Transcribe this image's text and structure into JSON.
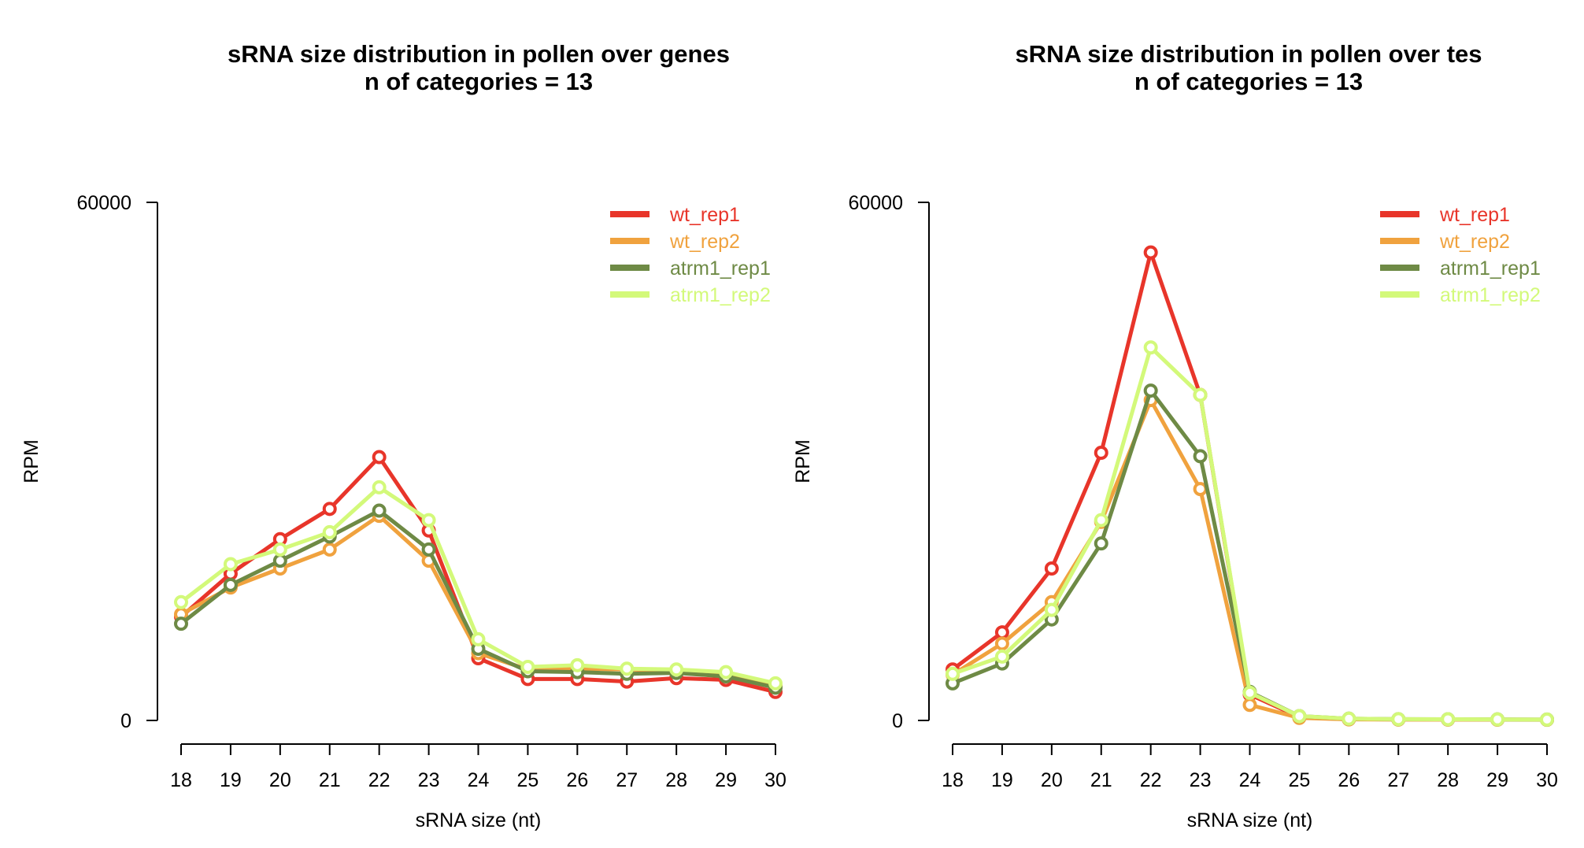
{
  "chart_data": [
    {
      "type": "line",
      "title": "sRNA size distribution in pollen over genes",
      "subtitle": "n of categories = 13",
      "xlabel": "sRNA size (nt)",
      "ylabel": "RPM",
      "x": [
        18,
        19,
        20,
        21,
        22,
        23,
        24,
        25,
        26,
        27,
        28,
        29,
        30
      ],
      "x_tick_labels": [
        "18",
        "19",
        "20",
        "21",
        "22",
        "23",
        "24",
        "25",
        "26",
        "27",
        "28",
        "29",
        "30"
      ],
      "ylim": [
        0,
        60000
      ],
      "y_tick_labels": [
        "0",
        "60000"
      ],
      "grid": false,
      "legend_position": "top-right",
      "series": [
        {
          "name": "wt_rep1",
          "color": "#e8352a",
          "values": [
            12000,
            17000,
            21000,
            24500,
            30500,
            22000,
            7200,
            4800,
            4800,
            4500,
            4900,
            4700,
            3300
          ]
        },
        {
          "name": "wt_rep2",
          "color": "#f0a23e",
          "values": [
            12300,
            15400,
            17600,
            19800,
            23700,
            18500,
            7800,
            5900,
            6000,
            5900,
            5800,
            5300,
            4000
          ]
        },
        {
          "name": "atrm1_rep1",
          "color": "#6e8a45",
          "values": [
            11200,
            15700,
            18500,
            21300,
            24300,
            19800,
            8300,
            5700,
            5600,
            5400,
            5500,
            5100,
            3800
          ]
        },
        {
          "name": "atrm1_rep2",
          "color": "#d3f97a",
          "values": [
            13700,
            18100,
            19800,
            21800,
            27000,
            23200,
            9400,
            6200,
            6400,
            6000,
            5900,
            5600,
            4300
          ]
        }
      ]
    },
    {
      "type": "line",
      "title": "sRNA size distribution in pollen over tes",
      "subtitle": "n of categories = 13",
      "xlabel": "sRNA size (nt)",
      "ylabel": "RPM",
      "x": [
        18,
        19,
        20,
        21,
        22,
        23,
        24,
        25,
        26,
        27,
        28,
        29,
        30
      ],
      "x_tick_labels": [
        "18",
        "19",
        "20",
        "21",
        "22",
        "23",
        "24",
        "25",
        "26",
        "27",
        "28",
        "29",
        "30"
      ],
      "ylim": [
        0,
        60000
      ],
      "y_tick_labels": [
        "0",
        "60000"
      ],
      "grid": false,
      "legend_position": "top-right",
      "series": [
        {
          "name": "wt_rep1",
          "color": "#e8352a",
          "values": [
            5900,
            10200,
            17600,
            31000,
            54200,
            37700,
            3000,
            400,
            150,
            120,
            110,
            100,
            90
          ]
        },
        {
          "name": "wt_rep2",
          "color": "#f0a23e",
          "values": [
            5300,
            8900,
            13700,
            23000,
            37100,
            26800,
            1800,
            300,
            120,
            100,
            100,
            90,
            80
          ]
        },
        {
          "name": "atrm1_rep1",
          "color": "#6e8a45",
          "values": [
            4300,
            6600,
            11700,
            20500,
            38200,
            30600,
            3300,
            500,
            200,
            150,
            140,
            120,
            100
          ]
        },
        {
          "name": "atrm1_rep2",
          "color": "#d3f97a",
          "values": [
            5400,
            7400,
            12800,
            23200,
            43200,
            37700,
            3200,
            500,
            200,
            150,
            140,
            120,
            100
          ]
        }
      ]
    }
  ]
}
